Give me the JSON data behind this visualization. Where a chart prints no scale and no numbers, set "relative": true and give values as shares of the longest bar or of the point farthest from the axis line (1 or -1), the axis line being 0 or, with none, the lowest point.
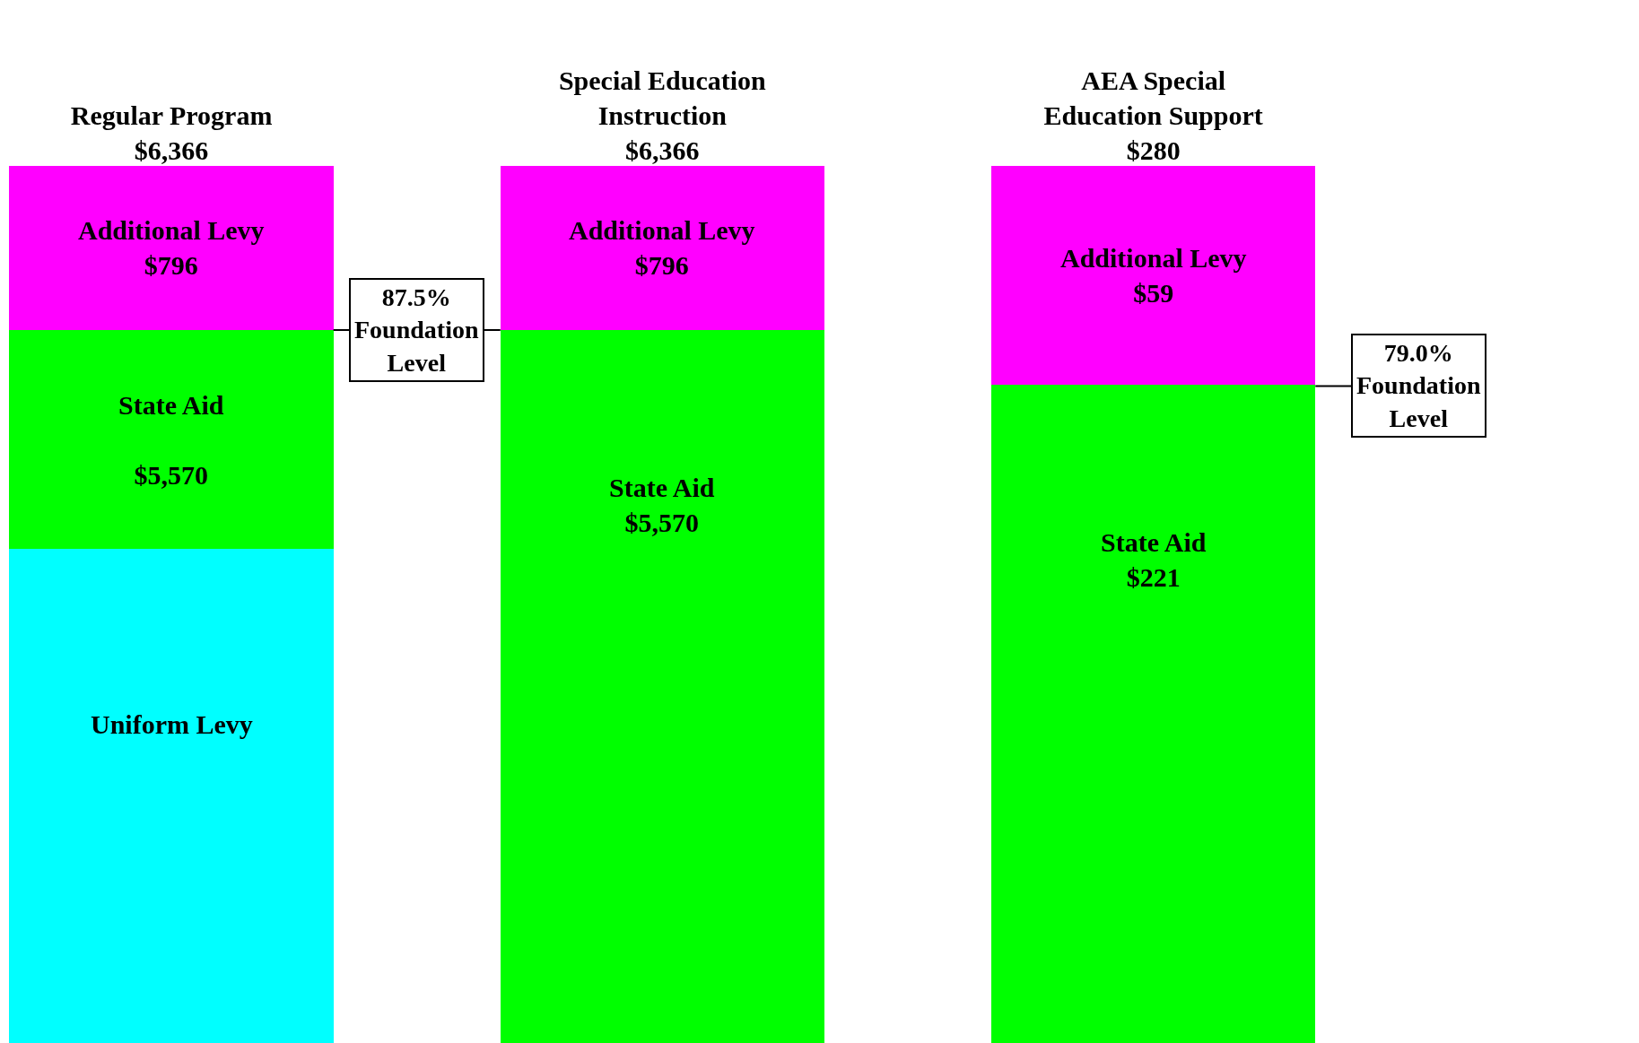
{
  "chart_data": {
    "type": "bar",
    "stacked": true,
    "relative": true,
    "categories": [
      "Regular Program\n$6,366",
      "Special Education\nInstruction\n$6,366",
      "AEA Special\nEducation Support\n$280"
    ],
    "series": [
      {
        "color": "#00ffff",
        "values": [
          0.563,
          0,
          0
        ]
      },
      {
        "color": "#00ff00",
        "values": [
          0.25,
          0.813,
          0.751
        ]
      },
      {
        "color": "#ff00ff",
        "values": [
          0.187,
          0.187,
          0.249
        ]
      }
    ],
    "annotations": [
      "Additional Levy\n$796",
      "State Aid\n\n$5,570",
      "Uniform Levy",
      "Additional Levy\n$796",
      "State Aid\n$5,570",
      "Additional Levy\n$59",
      "State Aid\n$221"
    ],
    "ref_lines": [
      {
        "axis": "y",
        "value": 0.813,
        "label": "87.5%\nFoundation\nLevel"
      },
      {
        "axis": "y",
        "value": 0.749,
        "label": "79.0%\nFoundation\nLevel"
      }
    ]
  }
}
